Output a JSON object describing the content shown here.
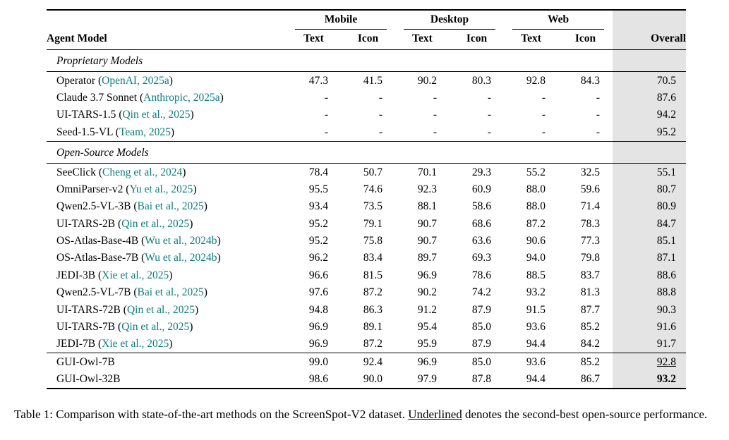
{
  "colors": {
    "citation": "#0e7c7c",
    "highlight": "#e4e4e4"
  },
  "table": {
    "agent_model_header": "Agent Model",
    "overall_header": "Overall",
    "col_groups": [
      {
        "label": "Mobile",
        "sub": [
          "Text",
          "Icon"
        ]
      },
      {
        "label": "Desktop",
        "sub": [
          "Text",
          "Icon"
        ]
      },
      {
        "label": "Web",
        "sub": [
          "Text",
          "Icon"
        ]
      }
    ],
    "sections": [
      {
        "title": "Proprietary Models",
        "rows": [
          {
            "name": "Operator",
            "cite": "OpenAI, 2025a",
            "values": [
              "47.3",
              "41.5",
              "90.2",
              "80.3",
              "92.8",
              "84.3"
            ],
            "overall": "70.5"
          },
          {
            "name": "Claude 3.7 Sonnet",
            "cite": "Anthropic, 2025a",
            "values": [
              "-",
              "-",
              "-",
              "-",
              "-",
              "-"
            ],
            "overall": "87.6"
          },
          {
            "name": "UI-TARS-1.5",
            "cite": "Qin et al., 2025",
            "values": [
              "-",
              "-",
              "-",
              "-",
              "-",
              "-"
            ],
            "overall": "94.2"
          },
          {
            "name": "Seed-1.5-VL",
            "cite": "Team, 2025",
            "values": [
              "-",
              "-",
              "-",
              "-",
              "-",
              "-"
            ],
            "overall": "95.2"
          }
        ]
      },
      {
        "title": "Open-Source Models",
        "rows": [
          {
            "name": "SeeClick",
            "cite": "Cheng et al., 2024",
            "values": [
              "78.4",
              "50.7",
              "70.1",
              "29.3",
              "55.2",
              "32.5"
            ],
            "overall": "55.1"
          },
          {
            "name": "OmniParser-v2",
            "cite": "Yu et al., 2025",
            "values": [
              "95.5",
              "74.6",
              "92.3",
              "60.9",
              "88.0",
              "59.6"
            ],
            "overall": "80.7"
          },
          {
            "name": "Qwen2.5-VL-3B",
            "cite": "Bai et al., 2025",
            "values": [
              "93.4",
              "73.5",
              "88.1",
              "58.6",
              "88.0",
              "71.4"
            ],
            "overall": "80.9"
          },
          {
            "name": "UI-TARS-2B",
            "cite": "Qin et al., 2025",
            "values": [
              "95.2",
              "79.1",
              "90.7",
              "68.6",
              "87.2",
              "78.3"
            ],
            "overall": "84.7"
          },
          {
            "name": "OS-Atlas-Base-4B",
            "cite": "Wu et al., 2024b",
            "values": [
              "95.2",
              "75.8",
              "90.7",
              "63.6",
              "90.6",
              "77.3"
            ],
            "overall": "85.1"
          },
          {
            "name": "OS-Atlas-Base-7B",
            "cite": "Wu et al., 2024b",
            "values": [
              "96.2",
              "83.4",
              "89.7",
              "69.3",
              "94.0",
              "79.8"
            ],
            "overall": "87.1"
          },
          {
            "name": "JEDI-3B",
            "cite": "Xie et al., 2025",
            "values": [
              "96.6",
              "81.5",
              "96.9",
              "78.6",
              "88.5",
              "83.7"
            ],
            "overall": "88.6"
          },
          {
            "name": "Qwen2.5-VL-7B",
            "cite": "Bai et al., 2025",
            "values": [
              "97.6",
              "87.2",
              "90.2",
              "74.2",
              "93.2",
              "81.3"
            ],
            "overall": "88.8"
          },
          {
            "name": "UI-TARS-72B",
            "cite": "Qin et al., 2025",
            "values": [
              "94.8",
              "86.3",
              "91.2",
              "87.9",
              "91.5",
              "87.7"
            ],
            "overall": "90.3"
          },
          {
            "name": "UI-TARS-7B",
            "cite": "Qin et al., 2025",
            "values": [
              "96.9",
              "89.1",
              "95.4",
              "85.0",
              "93.6",
              "85.2"
            ],
            "overall": "91.6"
          },
          {
            "name": "JEDI-7B",
            "cite": "Xie et al., 2025",
            "values": [
              "96.9",
              "87.2",
              "95.9",
              "87.9",
              "94.4",
              "84.2"
            ],
            "overall": "91.7"
          }
        ]
      },
      {
        "title": null,
        "rows": [
          {
            "name": "GUI-Owl-7B",
            "cite": null,
            "values": [
              "99.0",
              "92.4",
              "96.9",
              "85.0",
              "93.6",
              "85.2"
            ],
            "overall": "92.8",
            "overall_style": "underline"
          },
          {
            "name": "GUI-Owl-32B",
            "cite": null,
            "values": [
              "98.6",
              "90.0",
              "97.9",
              "87.8",
              "94.4",
              "86.7"
            ],
            "overall": "93.2",
            "overall_style": "bold"
          }
        ]
      }
    ]
  },
  "caption": {
    "prefix": "Table 1: Comparison with state-of-the-art methods on the ScreenSpot-V2 dataset. ",
    "underlined_word": "Underlined",
    "suffix": " denotes the second-best open-source performance."
  }
}
